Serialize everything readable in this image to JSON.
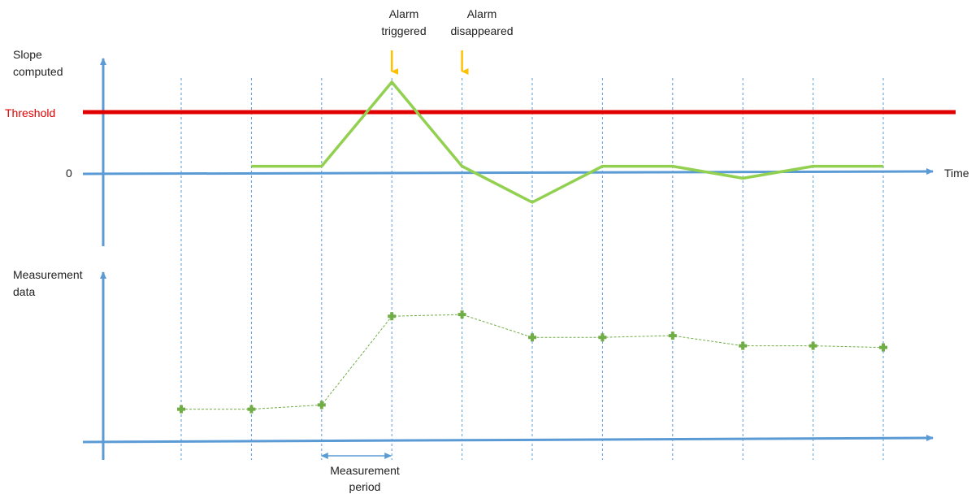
{
  "labels": {
    "slope_axis": [
      "Slope",
      "computed"
    ],
    "threshold": "Threshold",
    "zero": "0",
    "time": "Time",
    "measurement_axis": [
      "Measurement",
      "data"
    ],
    "measurement_period": [
      "Measurement",
      "period"
    ],
    "alarm_triggered": [
      "Alarm",
      "triggered"
    ],
    "alarm_disappeared": [
      "Alarm",
      "disappeared"
    ]
  },
  "colors": {
    "axis": "#5b9bd5",
    "threshold": "#e00000",
    "threshold_text": "#e00000",
    "slope_line": "#92d050",
    "measurement_points": "#70ad47",
    "alarm_arrow": "#ffc000",
    "grid": "#5b9bd5"
  },
  "chart_data": {
    "type": "line",
    "x": [
      1,
      2,
      3,
      4,
      5,
      6,
      7,
      8,
      9,
      10,
      11
    ],
    "series": [
      {
        "values": [
          null,
          0.1,
          0.1,
          1.5,
          0.1,
          -0.5,
          0.1,
          0.1,
          -0.1,
          0.1,
          0.1
        ]
      },
      {
        "values": [
          0.35,
          0.35,
          0.4,
          1.45,
          1.47,
          1.2,
          1.2,
          1.22,
          1.1,
          1.1,
          1.08
        ]
      }
    ],
    "threshold": 1.0,
    "alarm_triggered_at": 4,
    "alarm_disappeared_at": 5,
    "measurement_period": [
      3,
      4
    ],
    "grid": "vertical dashed lines at each time step",
    "legend": "none"
  }
}
